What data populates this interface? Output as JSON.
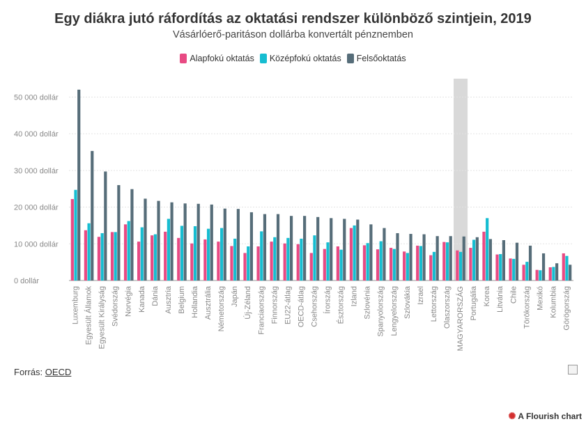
{
  "title": "Egy diákra jutó ráfordítás az oktatási rendszer különböző szintjein, 2019",
  "subtitle": "Vásárlóerő-paritáson dollárba konvertált pénznemben",
  "source_label": "Forrás:",
  "source_link": "OECD",
  "flourish_label": "A Flourish chart",
  "colors": {
    "primary": "#e84a83",
    "secondary": "#16bdd1",
    "tertiary": "#566d79",
    "highlight": "#d9d9d9"
  },
  "chart_data": {
    "type": "bar",
    "ylim": [
      0,
      55000
    ],
    "yticks": [
      0,
      10000,
      20000,
      30000,
      40000,
      50000
    ],
    "ytick_labels": [
      "0 dollár",
      "10 000 dollár",
      "20 000 dollár",
      "30 000 dollár",
      "40 000 dollár",
      "50 000 dollár"
    ],
    "grid": true,
    "highlight_category": "MAGYARORSZÁG",
    "categories": [
      "Luxemburg",
      "Egyesült Államok",
      "Egyesült Királyság",
      "Svédország",
      "Norvégia",
      "Kanada",
      "Dánia",
      "Ausztria",
      "Belgium",
      "Hollandia",
      "Ausztrália",
      "Németország",
      "Japán",
      "Új-Zéland",
      "Franciaország",
      "Finnország",
      "EU22-átlag",
      "OECD-átlag",
      "Csehország",
      "Írország",
      "Észtország",
      "Izland",
      "Szlovénia",
      "Spanyolország",
      "Lengyelország",
      "Szlovákia",
      "Izrael",
      "Lettország",
      "Olaszország",
      "MAGYARORSZÁG",
      "Portugália",
      "Korea",
      "Litvánia",
      "Chile",
      "Törökország",
      "Mexikó",
      "Kolumbia",
      "Görögország"
    ],
    "series": [
      {
        "name": "Alapfokú oktatás",
        "values": [
          22200,
          13700,
          11900,
          13200,
          15300,
          10600,
          12300,
          13300,
          11600,
          10100,
          11200,
          10600,
          9400,
          7500,
          9300,
          10600,
          10100,
          9900,
          7500,
          8600,
          9300,
          14300,
          9600,
          8500,
          8900,
          7900,
          9500,
          6900,
          10500,
          8200,
          8900,
          13300,
          7100,
          6000,
          4300,
          2900,
          3600,
          7400
        ]
      },
      {
        "name": "Középfokú oktatás",
        "values": [
          24700,
          15600,
          12900,
          13200,
          16200,
          14500,
          12600,
          16800,
          14900,
          14800,
          14100,
          14300,
          11400,
          9300,
          13400,
          11800,
          11600,
          11400,
          12300,
          10400,
          8400,
          15000,
          10200,
          10700,
          8600,
          7500,
          9400,
          7800,
          10400,
          7800,
          11100,
          17000,
          7200,
          5900,
          5100,
          2800,
          3700,
          6700
        ]
      },
      {
        "name": "Felsőoktatás",
        "values": [
          52000,
          35300,
          29700,
          26000,
          24900,
          22300,
          21700,
          21300,
          21000,
          20900,
          20700,
          19600,
          19500,
          18600,
          18100,
          18100,
          17600,
          17600,
          17300,
          17000,
          16800,
          16600,
          15300,
          14300,
          12900,
          12700,
          12600,
          12100,
          12100,
          12000,
          11800,
          11300,
          11000,
          10300,
          9500,
          7400,
          4700,
          4300
        ]
      }
    ]
  }
}
